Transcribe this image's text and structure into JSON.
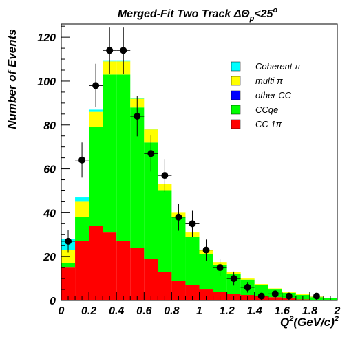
{
  "chart_data": {
    "type": "bar",
    "stacked": true,
    "title": "Merged-Fit Two Track ΔΘ",
    "title_subscript": "p",
    "title_suffix": "<25",
    "title_superscript": "o",
    "xlabel": "Q",
    "xlabel_sup1": "2",
    "xlabel_mid": "(GeV/c)",
    "xlabel_sup2": "2",
    "ylabel": "Number of Events",
    "xlim": [
      0,
      2
    ],
    "ylim": [
      0,
      126
    ],
    "bin_width": 0.1,
    "bin_edges": [
      0.0,
      0.1,
      0.2,
      0.3,
      0.4,
      0.5,
      0.6,
      0.7,
      0.8,
      0.9,
      1.0,
      1.1,
      1.2,
      1.3,
      1.4,
      1.5,
      1.6,
      1.7,
      1.8,
      1.9,
      2.0
    ],
    "xticks": [
      "0",
      "0.2",
      "0.4",
      "0.6",
      "0.8",
      "1",
      "1.2",
      "1.4",
      "1.6",
      "1.8",
      "2"
    ],
    "xtick_values": [
      0,
      0.2,
      0.4,
      0.6,
      0.8,
      1.0,
      1.2,
      1.4,
      1.6,
      1.8,
      2.0
    ],
    "yticks": [
      "0",
      "20",
      "40",
      "60",
      "80",
      "100",
      "120"
    ],
    "ytick_values": [
      0,
      20,
      40,
      60,
      80,
      100,
      120
    ],
    "legend_position": "top-right",
    "series": [
      {
        "name": "CC 1π",
        "color": "#ff0000",
        "values": [
          15,
          27,
          34,
          31,
          27,
          24,
          19,
          13,
          9,
          7,
          5,
          4,
          3,
          2.5,
          2,
          1.5,
          1,
          0.5,
          0.3,
          0.2
        ]
      },
      {
        "name": "CCqe",
        "color": "#00ff00",
        "values": [
          2,
          11,
          45,
          72,
          76,
          64,
          53,
          37,
          29,
          22,
          16,
          12,
          9,
          7,
          5,
          3.5,
          2.5,
          2,
          1.2,
          0.8
        ]
      },
      {
        "name": "other CC",
        "color": "#0000ff",
        "values": [
          0,
          0,
          0,
          0,
          0,
          0,
          0,
          0,
          0,
          0,
          0,
          0,
          0,
          0,
          0,
          0,
          0,
          0,
          0,
          0
        ]
      },
      {
        "name": "multi π",
        "color": "#ffff00",
        "values": [
          6,
          7,
          7,
          6,
          6,
          4,
          6,
          3,
          2,
          2,
          2,
          1.5,
          1,
          0.5,
          0.5,
          0.5,
          0.3,
          0.3,
          0.2,
          0.2
        ]
      },
      {
        "name": "Coherent π",
        "color": "#00ffff",
        "values": [
          5,
          2,
          1,
          0.5,
          0.5,
          0.3,
          0.2,
          0,
          0,
          0,
          0,
          0,
          0,
          0,
          0,
          0,
          0,
          0,
          0,
          0
        ]
      }
    ],
    "legend_entries": [
      {
        "label": "Coherent π",
        "color": "#00ffff"
      },
      {
        "label": "multi π",
        "color": "#ffff00"
      },
      {
        "label": "other CC",
        "color": "#0000ff"
      },
      {
        "label": "CCqe",
        "color": "#00ff00"
      },
      {
        "label": "CC 1π",
        "color": "#ff0000"
      }
    ],
    "data_points": {
      "x": [
        0.05,
        0.15,
        0.25,
        0.35,
        0.45,
        0.55,
        0.65,
        0.75,
        0.85,
        0.95,
        1.05,
        1.15,
        1.25,
        1.35,
        1.45,
        1.55,
        1.65,
        1.85
      ],
      "y": [
        27,
        64,
        98,
        114,
        114,
        84,
        67,
        57,
        38,
        35,
        23,
        15,
        10,
        6,
        2,
        3,
        2,
        2
      ],
      "err": [
        5.2,
        8,
        9.9,
        10.7,
        10.7,
        9.2,
        8.2,
        7.5,
        6.2,
        5.9,
        4.8,
        3.9,
        3.2,
        2.4,
        1.4,
        1.7,
        1.4,
        1.4
      ]
    }
  }
}
